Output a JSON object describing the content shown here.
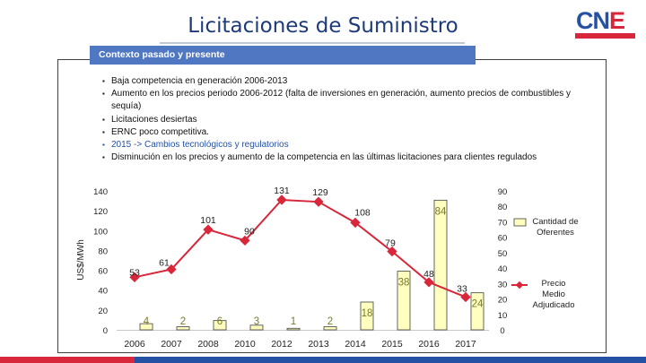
{
  "page": {
    "title": "Licitaciones de Suministro",
    "logo_text": "CNE",
    "section_label": "Contexto pasado y presente"
  },
  "bullets": [
    {
      "text": "Baja competencia en generación 2006-2013",
      "highlight": false
    },
    {
      "text": "Aumento en los precios periodo 2006-2012 (falta de inversiones en generación, aumento precios de combustibles y sequía)",
      "highlight": false
    },
    {
      "text": "Licitaciones desiertas",
      "highlight": false
    },
    {
      "text": "ERNC poco competitiva.",
      "highlight": false
    },
    {
      "text": "2015 -> Cambios tecnológicos y regulatorios",
      "highlight": true
    },
    {
      "text": "Disminución en los precios y aumento de la competencia en las últimas licitaciones para clientes regulados",
      "highlight": false
    }
  ],
  "colors": {
    "title": "#1f3a78",
    "band": "#4f77c2",
    "bar_fill": "#ffffc0",
    "bar_stroke": "#404040",
    "line": "#d8263a",
    "accent_blue": "#2451a4"
  },
  "chart_data": {
    "type": "bar+line",
    "categories": [
      "2006",
      "2007",
      "2008",
      "2010",
      "2012",
      "2013",
      "2014",
      "2015",
      "2016",
      "2017"
    ],
    "series": [
      {
        "name": "Cantidad de Oferentes",
        "type": "bar",
        "axis": "right",
        "values": [
          4,
          2,
          6,
          3,
          1,
          2,
          18,
          38,
          84,
          24
        ]
      },
      {
        "name": "Precio Medio Adjudicado",
        "type": "line",
        "axis": "left",
        "values": [
          53,
          61,
          101,
          90,
          131,
          129,
          108,
          79,
          48,
          33
        ]
      }
    ],
    "ylabel": "US$/MWh",
    "ylim_left": [
      0,
      140
    ],
    "yticks_left": [
      "0",
      "20",
      "40",
      "60",
      "80",
      "100",
      "120",
      "140"
    ],
    "ylim_right": [
      0,
      90
    ],
    "yticks_right": [
      "0",
      "10",
      "20",
      "30",
      "40",
      "50",
      "60",
      "70",
      "80",
      "90"
    ],
    "legend": {
      "bars": "Cantidad de Oferentes",
      "line": "Precio Medio Adjudicado"
    }
  }
}
